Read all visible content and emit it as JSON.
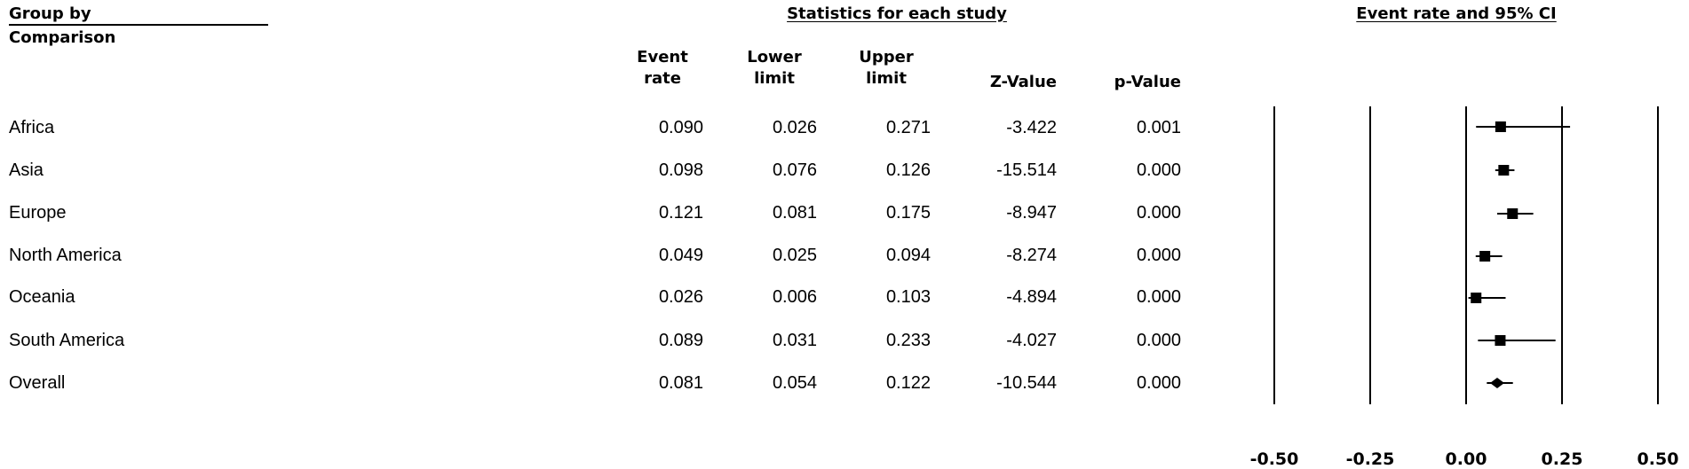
{
  "header": {
    "group_title_line1": "Group by",
    "group_title_line2": "Comparison",
    "stats_title": "Statistics for each study",
    "plot_title": "Event rate and 95% CI",
    "col_event_rate_line1": "Event",
    "col_event_rate_line2": "rate",
    "col_lower_line1": "Lower",
    "col_lower_line2": "limit",
    "col_upper_line1": "Upper",
    "col_upper_line2": "limit",
    "col_z": "Z-Value",
    "col_p": "p-Value"
  },
  "rows": [
    {
      "label": "Africa",
      "event_rate": "0.090",
      "lower": "0.026",
      "upper": "0.271",
      "z": "-3.422",
      "p": "0.001"
    },
    {
      "label": "Asia",
      "event_rate": "0.098",
      "lower": "0.076",
      "upper": "0.126",
      "z": "-15.514",
      "p": "0.000"
    },
    {
      "label": "Europe",
      "event_rate": "0.121",
      "lower": "0.081",
      "upper": "0.175",
      "z": "-8.947",
      "p": "0.000"
    },
    {
      "label": "North America",
      "event_rate": "0.049",
      "lower": "0.025",
      "upper": "0.094",
      "z": "-8.274",
      "p": "0.000"
    },
    {
      "label": "Oceania",
      "event_rate": "0.026",
      "lower": "0.006",
      "upper": "0.103",
      "z": "-4.894",
      "p": "0.000"
    },
    {
      "label": "South America",
      "event_rate": "0.089",
      "lower": "0.031",
      "upper": "0.233",
      "z": "-4.027",
      "p": "0.000"
    },
    {
      "label": "Overall",
      "event_rate": "0.081",
      "lower": "0.054",
      "upper": "0.122",
      "z": "-10.544",
      "p": "0.000"
    }
  ],
  "chart_data": {
    "type": "scatter",
    "subtype": "forest-plot",
    "title": "Event rate and 95% CI",
    "categories": [
      "Africa",
      "Asia",
      "Europe",
      "North America",
      "Oceania",
      "South America",
      "Overall"
    ],
    "series": [
      {
        "name": "Event rate",
        "values": [
          0.09,
          0.098,
          0.121,
          0.049,
          0.026,
          0.089,
          0.081
        ],
        "lower": [
          0.026,
          0.076,
          0.081,
          0.025,
          0.006,
          0.031,
          0.054
        ],
        "upper": [
          0.271,
          0.126,
          0.175,
          0.094,
          0.103,
          0.233,
          0.122
        ],
        "marker": [
          "square",
          "square",
          "square",
          "square",
          "square",
          "square",
          "diamond"
        ]
      }
    ],
    "xlim": [
      -0.5,
      0.5
    ],
    "xticks": [
      -0.5,
      -0.25,
      0.0,
      0.25,
      0.5
    ],
    "xtick_labels": [
      "-0.50",
      "-0.25",
      "0.00",
      "0.25",
      "0.50"
    ],
    "grid": "vertical lines at ticks",
    "colors": {
      "ink": "#000000",
      "background": "#ffffff"
    }
  }
}
